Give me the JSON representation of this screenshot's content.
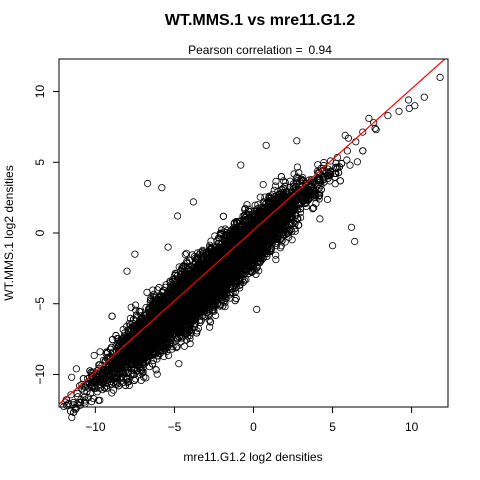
{
  "chart_data": {
    "type": "scatter",
    "title": "WT.MMS.1 vs mre11.G1.2",
    "subtitle_label": "Pearson correlation =",
    "subtitle_value": "0.94",
    "xlabel": "mre11.G1.2 log2 densities",
    "ylabel": "WT.MMS.1 log2 densities",
    "xlim": [
      -12.3,
      12.3
    ],
    "ylim": [
      -12.3,
      12.3
    ],
    "x_ticks": [
      -10,
      -5,
      0,
      5,
      10
    ],
    "y_ticks": [
      -10,
      -5,
      0,
      5,
      10
    ],
    "grid": false,
    "marker": "open-circle",
    "point_color": "#000000",
    "fit_line_color": "#ff0000",
    "fit_line": {
      "slope": 1.0,
      "intercept": 0.2
    },
    "point_count_estimate": 8000,
    "cloud": {
      "x_min": -12,
      "x_max": 12,
      "center": [
        -3,
        -3.5
      ],
      "spread_along": 3.0,
      "spread_across": 1.0
    },
    "notable_points": [
      {
        "x": 11.8,
        "y": 11.0
      },
      {
        "x": 10.8,
        "y": 9.6
      },
      {
        "x": 10.2,
        "y": 9.0
      },
      {
        "x": 9.8,
        "y": 9.4
      },
      {
        "x": 9.2,
        "y": 8.6
      },
      {
        "x": 8.5,
        "y": 8.3
      },
      {
        "x": 7.6,
        "y": 7.8
      },
      {
        "x": 7.3,
        "y": 8.1
      },
      {
        "x": 6.0,
        "y": 6.7
      },
      {
        "x": 5.8,
        "y": 6.9
      },
      {
        "x": 4.2,
        "y": 1.0
      },
      {
        "x": 6.4,
        "y": -0.6
      },
      {
        "x": 6.2,
        "y": 0.4
      },
      {
        "x": 5.0,
        "y": -0.9
      },
      {
        "x": 0.8,
        "y": 6.2
      },
      {
        "x": -0.8,
        "y": 4.8
      },
      {
        "x": -6.7,
        "y": 3.5
      },
      {
        "x": -5.8,
        "y": 3.2
      },
      {
        "x": -4.8,
        "y": 1.2
      },
      {
        "x": -3.8,
        "y": 2.2
      },
      {
        "x": -5.4,
        "y": -1.0
      },
      {
        "x": -8.0,
        "y": -2.7
      },
      {
        "x": -7.5,
        "y": -1.5
      },
      {
        "x": -1.8,
        "y": -5.2
      },
      {
        "x": 0.2,
        "y": -5.4
      },
      {
        "x": -10.5,
        "y": -10.3
      },
      {
        "x": -11.2,
        "y": -9.6
      },
      {
        "x": -11.5,
        "y": -10.2
      },
      {
        "x": -11.0,
        "y": -10.8
      },
      {
        "x": -8.7,
        "y": -10.5
      },
      {
        "x": -9.7,
        "y": -8.4
      },
      {
        "x": -7.5,
        "y": -9.0
      }
    ]
  }
}
